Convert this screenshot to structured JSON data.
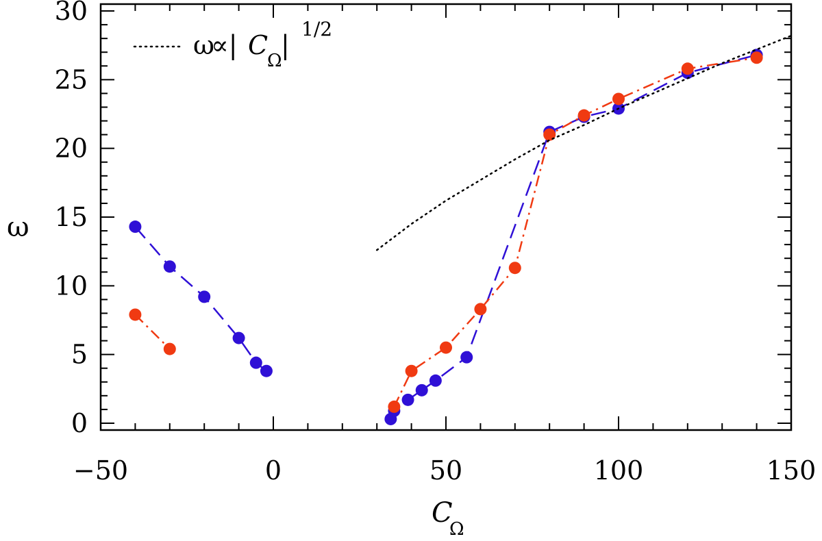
{
  "chart_data": {
    "type": "scatter",
    "title": "",
    "xlabel": "C",
    "xlabel_sub": "Ω",
    "ylabel": "ω",
    "xlim": [
      -50,
      150
    ],
    "ylim": [
      -0.5,
      30.5
    ],
    "x_ticks": [
      -50,
      0,
      50,
      100,
      150
    ],
    "x_tick_labels": [
      "−50",
      "0",
      "50",
      "100",
      "150"
    ],
    "y_ticks": [
      0,
      5,
      10,
      15,
      20,
      25,
      30
    ],
    "y_tick_labels": [
      "0",
      "5",
      "10",
      "15",
      "20",
      "25",
      "30"
    ],
    "grid": false,
    "legend": {
      "placement": "top-left",
      "text_omega": "ω",
      "text_prop": "∝|",
      "text_c": "C",
      "text_sub": "Ω",
      "text_bar": "|",
      "text_exp": "1/2"
    },
    "series": [
      {
        "color": "#2f10d6",
        "line_style": "dashed",
        "segments": [
          [
            [
              -40,
              14.3
            ],
            [
              -30,
              11.4
            ],
            [
              -20,
              9.2
            ],
            [
              -10,
              6.2
            ],
            [
              -5,
              4.4
            ],
            [
              -2,
              3.8
            ]
          ],
          [
            [
              34,
              0.3
            ],
            [
              35,
              0.9
            ],
            [
              39,
              1.7
            ],
            [
              43,
              2.4
            ],
            [
              47,
              3.1
            ],
            [
              56,
              4.8
            ],
            [
              80,
              21.2
            ],
            [
              90,
              22.3
            ],
            [
              100,
              22.9
            ],
            [
              120,
              25.5
            ],
            [
              140,
              26.8
            ]
          ]
        ]
      },
      {
        "color": "#f03a12",
        "line_style": "dashdot",
        "segments": [
          [
            [
              -40,
              7.9
            ],
            [
              -30,
              5.4
            ]
          ],
          [
            [
              35,
              1.2
            ],
            [
              40,
              3.8
            ],
            [
              50,
              5.5
            ],
            [
              60,
              8.3
            ],
            [
              70,
              11.3
            ],
            [
              80,
              21.0
            ],
            [
              90,
              22.4
            ],
            [
              100,
              23.6
            ],
            [
              120,
              25.8
            ],
            [
              140,
              26.6
            ]
          ]
        ]
      },
      {
        "color": "#000000",
        "line_style": "dotted",
        "fit": "omega proportional to |C_Omega|^(1/2)",
        "x": [
          30,
          40,
          50,
          60,
          70,
          80,
          90,
          100,
          110,
          120,
          130,
          140,
          150
        ],
        "y": [
          12.6,
          14.5,
          16.2,
          17.7,
          19.2,
          20.6,
          21.7,
          22.9,
          24.0,
          25.1,
          26.2,
          27.2,
          28.2
        ]
      }
    ]
  }
}
